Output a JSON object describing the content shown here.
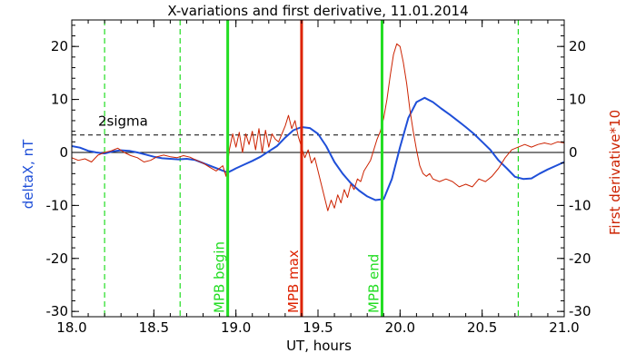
{
  "chart_data": {
    "type": "line",
    "title": "X-variations and first derivative, 11.01.2014",
    "xlabel": "UT, hours",
    "ylabel_left": "deltaX, nT",
    "ylabel_right": "First derivative*10",
    "xlim": [
      18.0,
      21.0
    ],
    "ylim": [
      -31,
      25
    ],
    "x_ticks": [
      "18.0",
      "18.5",
      "19.0",
      "19.5",
      "20.0",
      "20.5",
      "21.0"
    ],
    "y_ticks": [
      "-30",
      "-20",
      "-10",
      "0",
      "10",
      "20"
    ],
    "grid": false,
    "colors": {
      "deltaX": "#1f4fd8",
      "derivative": "#cc2200",
      "mpb_edges": "#22dd22",
      "mpb_max": "#dd2200",
      "dashed_green": "#22dd22",
      "axes": "#000000"
    },
    "threshold": {
      "label": "2sigma",
      "y": 3.3
    },
    "zero_line_y": 0,
    "vertical_markers": [
      {
        "x": 18.95,
        "label": "MPB begin",
        "style": "solid",
        "color": "#22dd22"
      },
      {
        "x": 19.4,
        "label": "MPB max",
        "style": "solid",
        "color": "#dd2200"
      },
      {
        "x": 19.89,
        "label": "MPB end",
        "style": "solid",
        "color": "#22dd22"
      },
      {
        "x": 18.2,
        "label": "",
        "style": "dashed",
        "color": "#22dd22"
      },
      {
        "x": 18.66,
        "label": "",
        "style": "dashed",
        "color": "#22dd22"
      },
      {
        "x": 20.72,
        "label": "",
        "style": "dashed",
        "color": "#22dd22"
      }
    ],
    "series": [
      {
        "name": "deltaX, nT",
        "color": "#1f4fd8",
        "width": 2,
        "x": [
          18.0,
          18.05,
          18.1,
          18.15,
          18.2,
          18.25,
          18.3,
          18.35,
          18.4,
          18.45,
          18.5,
          18.55,
          18.6,
          18.65,
          18.7,
          18.75,
          18.8,
          18.85,
          18.9,
          18.95,
          19.0,
          19.05,
          19.1,
          19.15,
          19.2,
          19.25,
          19.3,
          19.35,
          19.4,
          19.45,
          19.5,
          19.55,
          19.6,
          19.65,
          19.7,
          19.75,
          19.8,
          19.85,
          19.9,
          19.95,
          20.0,
          20.05,
          20.1,
          20.15,
          20.2,
          20.25,
          20.3,
          20.35,
          20.4,
          20.45,
          20.5,
          20.55,
          20.6,
          20.65,
          20.7,
          20.75,
          20.8,
          20.85,
          20.9,
          20.95,
          21.0
        ],
        "y": [
          1.2,
          0.9,
          0.3,
          0.0,
          -0.2,
          0.2,
          0.4,
          0.3,
          0.0,
          -0.4,
          -0.8,
          -1.1,
          -1.2,
          -1.3,
          -1.2,
          -1.4,
          -2.0,
          -2.6,
          -3.2,
          -3.8,
          -3.0,
          -2.3,
          -1.6,
          -0.8,
          0.2,
          1.2,
          2.8,
          4.2,
          4.8,
          4.6,
          3.5,
          1.2,
          -1.8,
          -4.0,
          -5.8,
          -7.2,
          -8.3,
          -9.0,
          -8.8,
          -5.0,
          1.0,
          6.5,
          9.5,
          10.3,
          9.5,
          8.3,
          7.2,
          6.0,
          4.8,
          3.5,
          2.0,
          0.5,
          -1.5,
          -3.0,
          -4.6,
          -5.0,
          -4.9,
          -4.0,
          -3.2,
          -2.5,
          -1.8
        ]
      },
      {
        "name": "First derivative*10",
        "color": "#cc2200",
        "width": 1,
        "x": [
          18.0,
          18.04,
          18.08,
          18.12,
          18.16,
          18.2,
          18.24,
          18.28,
          18.32,
          18.36,
          18.4,
          18.44,
          18.48,
          18.52,
          18.56,
          18.6,
          18.64,
          18.68,
          18.72,
          18.76,
          18.8,
          18.84,
          18.88,
          18.92,
          18.94,
          18.96,
          18.98,
          19.0,
          19.02,
          19.04,
          19.06,
          19.08,
          19.1,
          19.12,
          19.14,
          19.16,
          19.18,
          19.2,
          19.22,
          19.24,
          19.26,
          19.28,
          19.3,
          19.32,
          19.34,
          19.36,
          19.38,
          19.4,
          19.42,
          19.44,
          19.46,
          19.48,
          19.5,
          19.52,
          19.54,
          19.56,
          19.58,
          19.6,
          19.62,
          19.64,
          19.66,
          19.68,
          19.7,
          19.72,
          19.74,
          19.76,
          19.78,
          19.8,
          19.82,
          19.84,
          19.86,
          19.88,
          19.9,
          19.92,
          19.94,
          19.96,
          19.98,
          20.0,
          20.02,
          20.04,
          20.06,
          20.08,
          20.1,
          20.12,
          20.14,
          20.16,
          20.18,
          20.2,
          20.24,
          20.28,
          20.32,
          20.36,
          20.4,
          20.44,
          20.48,
          20.52,
          20.56,
          20.6,
          20.64,
          20.68,
          20.72,
          20.76,
          20.8,
          20.84,
          20.88,
          20.92,
          20.96,
          21.0
        ],
        "y": [
          -1.0,
          -1.5,
          -1.2,
          -1.8,
          -0.5,
          0.0,
          0.3,
          0.8,
          0.0,
          -0.6,
          -1.0,
          -1.8,
          -1.5,
          -0.8,
          -0.5,
          -0.8,
          -1.0,
          -0.6,
          -0.9,
          -1.5,
          -2.0,
          -2.8,
          -3.5,
          -2.5,
          -4.5,
          0.5,
          3.5,
          1.0,
          3.8,
          0.0,
          3.5,
          1.5,
          4.0,
          0.5,
          4.5,
          0.0,
          4.2,
          1.0,
          3.5,
          2.5,
          2.0,
          3.5,
          5.0,
          7.0,
          4.5,
          6.0,
          3.0,
          1.0,
          -1.0,
          0.5,
          -2.0,
          -1.0,
          -3.5,
          -6.0,
          -8.5,
          -11.0,
          -9.0,
          -10.5,
          -8.0,
          -9.5,
          -7.0,
          -8.5,
          -6.0,
          -7.0,
          -5.0,
          -5.5,
          -3.5,
          -2.5,
          -1.5,
          0.5,
          2.5,
          4.0,
          6.5,
          10.0,
          14.5,
          18.5,
          20.5,
          20.0,
          17.0,
          13.0,
          8.0,
          4.0,
          0.5,
          -2.5,
          -4.0,
          -4.5,
          -4.0,
          -5.0,
          -5.5,
          -5.0,
          -5.5,
          -6.5,
          -6.0,
          -6.5,
          -5.0,
          -5.5,
          -4.5,
          -3.0,
          -1.0,
          0.5,
          1.0,
          1.5,
          1.0,
          1.5,
          1.8,
          1.5,
          2.0,
          1.8
        ]
      }
    ]
  }
}
